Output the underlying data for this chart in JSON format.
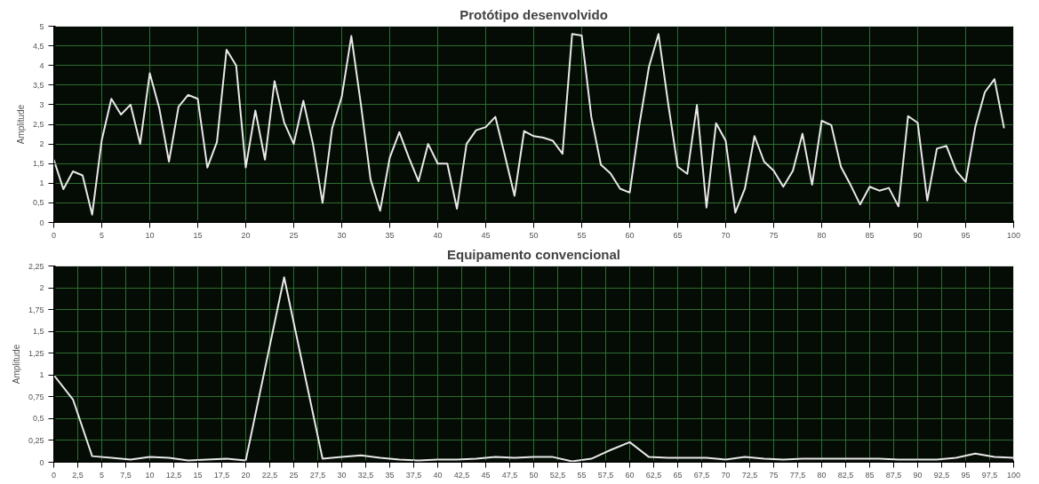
{
  "chart_data": [
    {
      "type": "line",
      "title": "Protótipo desenvolvido",
      "ylabel": "Amplitude",
      "x": [
        0,
        1,
        2,
        3,
        4,
        5,
        6,
        7,
        8,
        9,
        10,
        11,
        12,
        13,
        14,
        15,
        16,
        17,
        18,
        19,
        20,
        21,
        22,
        23,
        24,
        25,
        26,
        27,
        28,
        29,
        30,
        31,
        32,
        33,
        34,
        35,
        36,
        37,
        38,
        39,
        40,
        41,
        42,
        43,
        44,
        45,
        46,
        47,
        48,
        49,
        50,
        51,
        52,
        53,
        54,
        55,
        56,
        57,
        58,
        59,
        60,
        61,
        62,
        63,
        64,
        65,
        66,
        67,
        68,
        69,
        70,
        71,
        72,
        73,
        74,
        75,
        76,
        77,
        78,
        79,
        80,
        81,
        82,
        83,
        84,
        85,
        86,
        87,
        88,
        89,
        90,
        91,
        92,
        93,
        94,
        95,
        96,
        97,
        98,
        99
      ],
      "series": [
        {
          "color": "#e8e8e8",
          "values": [
            1.6,
            0.85,
            1.3,
            1.2,
            0.2,
            2.1,
            3.15,
            2.75,
            3.0,
            2.0,
            3.8,
            2.9,
            1.55,
            2.95,
            3.25,
            3.15,
            1.4,
            2.05,
            4.4,
            4.0,
            1.4,
            2.85,
            1.6,
            3.6,
            2.55,
            2.0,
            3.1,
            2.0,
            0.5,
            2.4,
            3.2,
            4.75,
            3.0,
            1.1,
            0.3,
            1.65,
            2.3,
            1.65,
            1.05,
            2.0,
            1.5,
            1.5,
            0.35,
            2.0,
            2.35,
            2.43,
            2.69,
            1.7,
            0.68,
            2.33,
            2.2,
            2.16,
            2.08,
            1.75,
            4.8,
            4.76,
            2.69,
            1.47,
            1.25,
            0.86,
            0.76,
            2.48,
            3.96,
            4.8,
            3.04,
            1.42,
            1.24,
            2.99,
            0.38,
            2.53,
            2.08,
            0.25,
            0.86,
            2.2,
            1.55,
            1.32,
            0.91,
            1.32,
            2.26,
            0.96,
            2.59,
            2.48,
            1.42,
            0.96,
            0.46,
            0.91,
            0.81,
            0.88,
            0.41,
            2.71,
            2.54,
            0.56,
            1.88,
            1.95,
            1.32,
            1.03,
            2.43,
            3.32,
            3.65,
            2.4
          ]
        }
      ],
      "xlim": [
        0,
        100
      ],
      "xticks": [
        0,
        5,
        10,
        15,
        20,
        25,
        30,
        35,
        40,
        45,
        50,
        55,
        60,
        65,
        70,
        75,
        80,
        85,
        90,
        95,
        100
      ],
      "ylim": [
        0,
        5
      ],
      "yticks": [
        0,
        {
          "value": 0.5,
          "label": "0,5"
        },
        1,
        {
          "value": 1.5,
          "label": "1,5"
        },
        2,
        {
          "value": 2.5,
          "label": "2,5"
        },
        3,
        {
          "value": 3.5,
          "label": "3,5"
        },
        4,
        {
          "value": 4.5,
          "label": "4,5"
        },
        5
      ],
      "grid": true,
      "marker": "none",
      "line_style": "solid"
    },
    {
      "type": "line",
      "title": "Equipamento convencional",
      "ylabel": "Amplitude",
      "x": [
        0,
        2,
        4,
        6,
        8,
        10,
        12,
        14,
        16,
        18,
        20,
        22,
        24,
        26,
        28,
        30,
        32,
        34,
        36,
        38,
        40,
        42,
        44,
        46,
        48,
        50,
        52,
        54,
        56,
        58,
        60,
        62,
        64,
        66,
        68,
        70,
        72,
        74,
        76,
        78,
        80,
        82,
        84,
        86,
        88,
        90,
        92,
        94,
        96,
        98,
        100
      ],
      "series": [
        {
          "color": "#e8e8e8",
          "values": [
            1.0,
            0.72,
            0.07,
            0.05,
            0.03,
            0.06,
            0.05,
            0.02,
            0.03,
            0.04,
            0.02,
            1.07,
            2.12,
            1.08,
            0.04,
            0.06,
            0.08,
            0.05,
            0.03,
            0.02,
            0.03,
            0.03,
            0.04,
            0.06,
            0.05,
            0.06,
            0.06,
            0.01,
            0.04,
            0.14,
            0.23,
            0.06,
            0.05,
            0.05,
            0.05,
            0.03,
            0.06,
            0.04,
            0.03,
            0.04,
            0.04,
            0.04,
            0.04,
            0.04,
            0.03,
            0.03,
            0.03,
            0.05,
            0.1,
            0.06,
            0.05
          ]
        }
      ],
      "xlim": [
        0,
        100
      ],
      "xticks": [
        0,
        {
          "value": 2.5,
          "label": "2,5"
        },
        5,
        {
          "value": 7.5,
          "label": "7,5"
        },
        10,
        {
          "value": 12.5,
          "label": "12,5"
        },
        15,
        {
          "value": 17.5,
          "label": "17,5"
        },
        20,
        {
          "value": 22.5,
          "label": "22,5"
        },
        25,
        {
          "value": 27.5,
          "label": "27,5"
        },
        30,
        {
          "value": 32.5,
          "label": "32,5"
        },
        35,
        {
          "value": 37.5,
          "label": "37,5"
        },
        40,
        {
          "value": 42.5,
          "label": "42,5"
        },
        45,
        {
          "value": 47.5,
          "label": "47,5"
        },
        50,
        {
          "value": 52.5,
          "label": "52,5"
        },
        55,
        {
          "value": 57.5,
          "label": "57,5"
        },
        60,
        {
          "value": 62.5,
          "label": "62,5"
        },
        65,
        {
          "value": 67.5,
          "label": "67,5"
        },
        70,
        {
          "value": 72.5,
          "label": "72,5"
        },
        75,
        {
          "value": 77.5,
          "label": "77,5"
        },
        80,
        {
          "value": 82.5,
          "label": "82,5"
        },
        85,
        {
          "value": 87.5,
          "label": "87,5"
        },
        90,
        {
          "value": 92.5,
          "label": "92,5"
        },
        95,
        {
          "value": 97.5,
          "label": "97,5"
        },
        100
      ],
      "ylim": [
        0,
        2.25
      ],
      "yticks": [
        0,
        {
          "value": 0.25,
          "label": "0,25"
        },
        {
          "value": 0.5,
          "label": "0,5"
        },
        {
          "value": 0.75,
          "label": "0,75"
        },
        1,
        {
          "value": 1.25,
          "label": "1,25"
        },
        {
          "value": 1.5,
          "label": "1,5"
        },
        {
          "value": 1.75,
          "label": "1,75"
        },
        2,
        {
          "value": 2.25,
          "label": "2,25"
        }
      ],
      "grid": true,
      "marker": "none",
      "line_style": "solid"
    }
  ]
}
